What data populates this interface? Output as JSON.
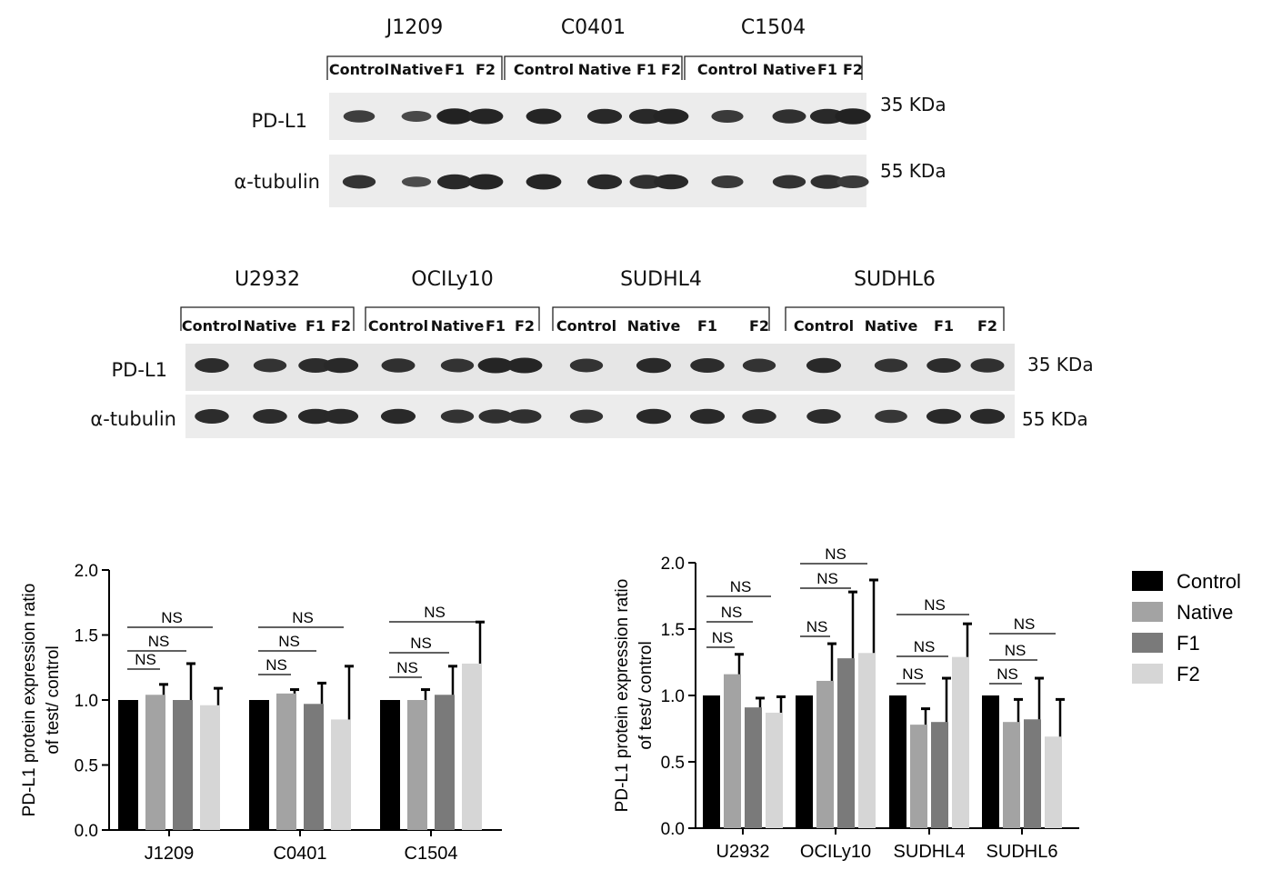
{
  "blots": [
    {
      "row_labels": [
        "PD-L1",
        "α-tubulin"
      ],
      "sizes": [
        "35 KDa",
        "55 KDa"
      ],
      "groups": [
        {
          "name": "J1209",
          "lanes": [
            "Control",
            "Native",
            "F1",
            "F2"
          ]
        },
        {
          "name": "C0401",
          "lanes": [
            "Control",
            "Native",
            "F1",
            "F2"
          ]
        },
        {
          "name": "C1504",
          "lanes": [
            "Control",
            "Native",
            "F1",
            "F2"
          ]
        }
      ]
    },
    {
      "row_labels": [
        "PD-L1",
        "α-tubulin"
      ],
      "sizes": [
        "35 KDa",
        "55 KDa"
      ],
      "groups": [
        {
          "name": "U2932",
          "lanes": [
            "Control",
            "Native",
            "F1",
            "F2"
          ]
        },
        {
          "name": "OCILy10",
          "lanes": [
            "Control",
            "Native",
            "F1",
            "F2"
          ]
        },
        {
          "name": "SUDHL4",
          "lanes": [
            "Control",
            "Native",
            "F1",
            "F2"
          ]
        },
        {
          "name": "SUDHL6",
          "lanes": [
            "Control",
            "Native",
            "F1",
            "F2"
          ]
        }
      ]
    }
  ],
  "chart_data": [
    {
      "type": "bar",
      "ylabel": "PD-L1 protein expression ratio of test/ control",
      "ylim": [
        0,
        2.0
      ],
      "yticks": [
        "0.0",
        "0.5",
        "1.0",
        "1.5",
        "2.0"
      ],
      "categories": [
        "J1209",
        "C0401",
        "C1504"
      ],
      "series": [
        {
          "name": "Control",
          "values": [
            1.0,
            1.0,
            1.0
          ],
          "errors": [
            0,
            0,
            0
          ]
        },
        {
          "name": "Native",
          "values": [
            1.04,
            1.05,
            1.0
          ],
          "errors": [
            0.08,
            0.03,
            0.08
          ]
        },
        {
          "name": "F1",
          "values": [
            1.0,
            0.97,
            1.04
          ],
          "errors": [
            0.28,
            0.16,
            0.22
          ]
        },
        {
          "name": "F2",
          "values": [
            0.96,
            0.85,
            1.28
          ],
          "errors": [
            0.13,
            0.41,
            0.32
          ]
        }
      ],
      "significance": [
        "NS",
        "NS",
        "NS",
        "NS",
        "NS",
        "NS",
        "NS",
        "NS",
        "NS"
      ]
    },
    {
      "type": "bar",
      "ylabel": "PD-L1 protein expression ratio of test/ control",
      "ylim": [
        0,
        2.0
      ],
      "yticks": [
        "0.0",
        "0.5",
        "1.0",
        "1.5",
        "2.0"
      ],
      "categories": [
        "U2932",
        "OCILy10",
        "SUDHL4",
        "SUDHL6"
      ],
      "series": [
        {
          "name": "Control",
          "values": [
            1.0,
            1.0,
            1.0,
            1.0
          ],
          "errors": [
            0,
            0,
            0,
            0
          ]
        },
        {
          "name": "Native",
          "values": [
            1.16,
            1.11,
            0.78,
            0.8
          ],
          "errors": [
            0.15,
            0.28,
            0.12,
            0.17
          ]
        },
        {
          "name": "F1",
          "values": [
            0.91,
            1.28,
            0.8,
            0.82
          ],
          "errors": [
            0.07,
            0.5,
            0.33,
            0.31
          ]
        },
        {
          "name": "F2",
          "values": [
            0.87,
            1.32,
            1.29,
            0.69
          ],
          "errors": [
            0.12,
            0.55,
            0.25,
            0.28
          ]
        }
      ],
      "significance": [
        "NS",
        "NS",
        "NS",
        "NS",
        "NS",
        "NS",
        "NS",
        "NS",
        "NS",
        "NS",
        "NS",
        "NS"
      ]
    }
  ],
  "legend": {
    "placement": "right",
    "items": [
      "Control",
      "Native",
      "F1",
      "F2"
    ]
  },
  "colors": {
    "Control": "#000000",
    "Native": "#a3a3a3",
    "F1": "#7a7a7a",
    "F2": "#d6d6d6"
  }
}
